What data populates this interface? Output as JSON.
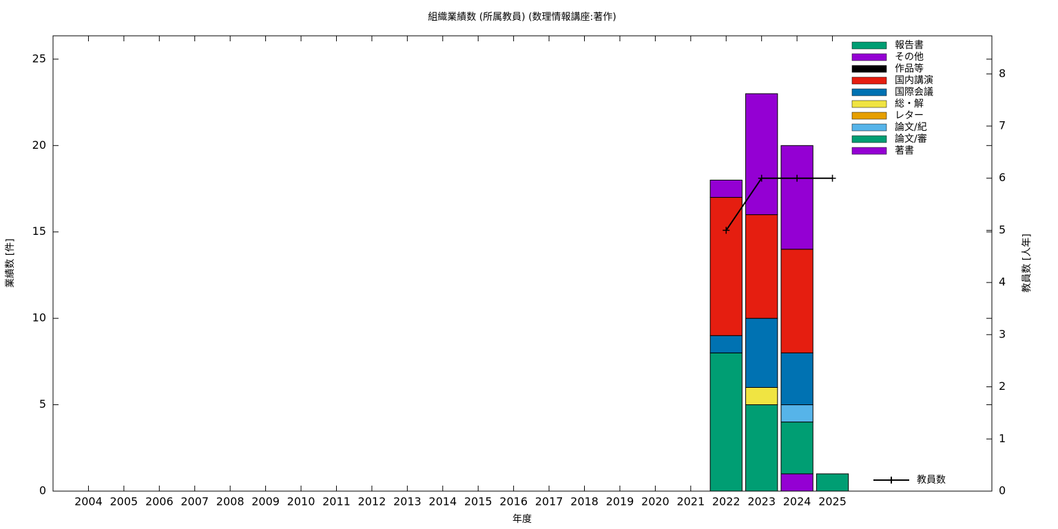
{
  "chart_data": {
    "type": "bar",
    "stacked": true,
    "title": "組織業績数 (所属教員) (数理情報講座:著作)",
    "xlabel": "年度",
    "ylabel": "業績数 [件]",
    "y2label": "教員数 [人年]",
    "x": [
      2004,
      2005,
      2006,
      2007,
      2008,
      2009,
      2010,
      2011,
      2012,
      2013,
      2014,
      2015,
      2016,
      2017,
      2018,
      2019,
      2020,
      2021,
      2022,
      2023,
      2024,
      2025
    ],
    "xlim": [
      2003,
      2029.5
    ],
    "xticks": [
      2004,
      2005,
      2006,
      2007,
      2008,
      2009,
      2010,
      2011,
      2012,
      2013,
      2014,
      2015,
      2016,
      2017,
      2018,
      2019,
      2020,
      2021,
      2022,
      2023,
      2024,
      2025
    ],
    "ylim": [
      0,
      26.35
    ],
    "yticks": [
      0,
      5,
      10,
      15,
      20,
      25
    ],
    "y2lim": [
      0,
      8.73
    ],
    "y2ticks": [
      0,
      1,
      2,
      3,
      4,
      5,
      6,
      7,
      8
    ],
    "legend": "upper right",
    "series": [
      {
        "name": "著書",
        "color": "#9400d3",
        "values": [
          0,
          0,
          0,
          0,
          0,
          0,
          0,
          0,
          0,
          0,
          0,
          0,
          0,
          0,
          0,
          0,
          0,
          0,
          0,
          0,
          1,
          0
        ]
      },
      {
        "name": "論文/審",
        "color": "#009e73",
        "values": [
          0,
          0,
          0,
          0,
          0,
          0,
          0,
          0,
          0,
          0,
          0,
          0,
          0,
          0,
          0,
          0,
          0,
          0,
          8,
          5,
          3,
          1
        ]
      },
      {
        "name": "論文/紀",
        "color": "#56b4e9",
        "values": [
          0,
          0,
          0,
          0,
          0,
          0,
          0,
          0,
          0,
          0,
          0,
          0,
          0,
          0,
          0,
          0,
          0,
          0,
          0,
          0,
          1,
          0
        ]
      },
      {
        "name": "レター",
        "color": "#e69f00",
        "values": [
          0,
          0,
          0,
          0,
          0,
          0,
          0,
          0,
          0,
          0,
          0,
          0,
          0,
          0,
          0,
          0,
          0,
          0,
          0,
          0,
          0,
          0
        ]
      },
      {
        "name": "総・解",
        "color": "#f0e442",
        "values": [
          0,
          0,
          0,
          0,
          0,
          0,
          0,
          0,
          0,
          0,
          0,
          0,
          0,
          0,
          0,
          0,
          0,
          0,
          0,
          1,
          0,
          0
        ]
      },
      {
        "name": "国際会議",
        "color": "#0072b2",
        "values": [
          0,
          0,
          0,
          0,
          0,
          0,
          0,
          0,
          0,
          0,
          0,
          0,
          0,
          0,
          0,
          0,
          0,
          0,
          1,
          4,
          3,
          0
        ]
      },
      {
        "name": "国内講演",
        "color": "#e51e10",
        "values": [
          0,
          0,
          0,
          0,
          0,
          0,
          0,
          0,
          0,
          0,
          0,
          0,
          0,
          0,
          0,
          0,
          0,
          0,
          8,
          6,
          6,
          0
        ]
      },
      {
        "name": "作品等",
        "color": "#000000",
        "values": [
          0,
          0,
          0,
          0,
          0,
          0,
          0,
          0,
          0,
          0,
          0,
          0,
          0,
          0,
          0,
          0,
          0,
          0,
          0,
          0,
          0,
          0
        ]
      },
      {
        "name": "その他",
        "color": "#9400d3",
        "values": [
          0,
          0,
          0,
          0,
          0,
          0,
          0,
          0,
          0,
          0,
          0,
          0,
          0,
          0,
          0,
          0,
          0,
          0,
          1,
          7,
          6,
          0
        ]
      },
      {
        "name": "報告書",
        "color": "#009e73",
        "values": [
          0,
          0,
          0,
          0,
          0,
          0,
          0,
          0,
          0,
          0,
          0,
          0,
          0,
          0,
          0,
          0,
          0,
          0,
          0,
          0,
          0,
          0
        ]
      }
    ],
    "line": {
      "name": "教員数",
      "color": "#000000",
      "axis": "y2",
      "x": [
        2022,
        2023,
        2024,
        2025
      ],
      "values": [
        5,
        6,
        6,
        6
      ]
    }
  }
}
